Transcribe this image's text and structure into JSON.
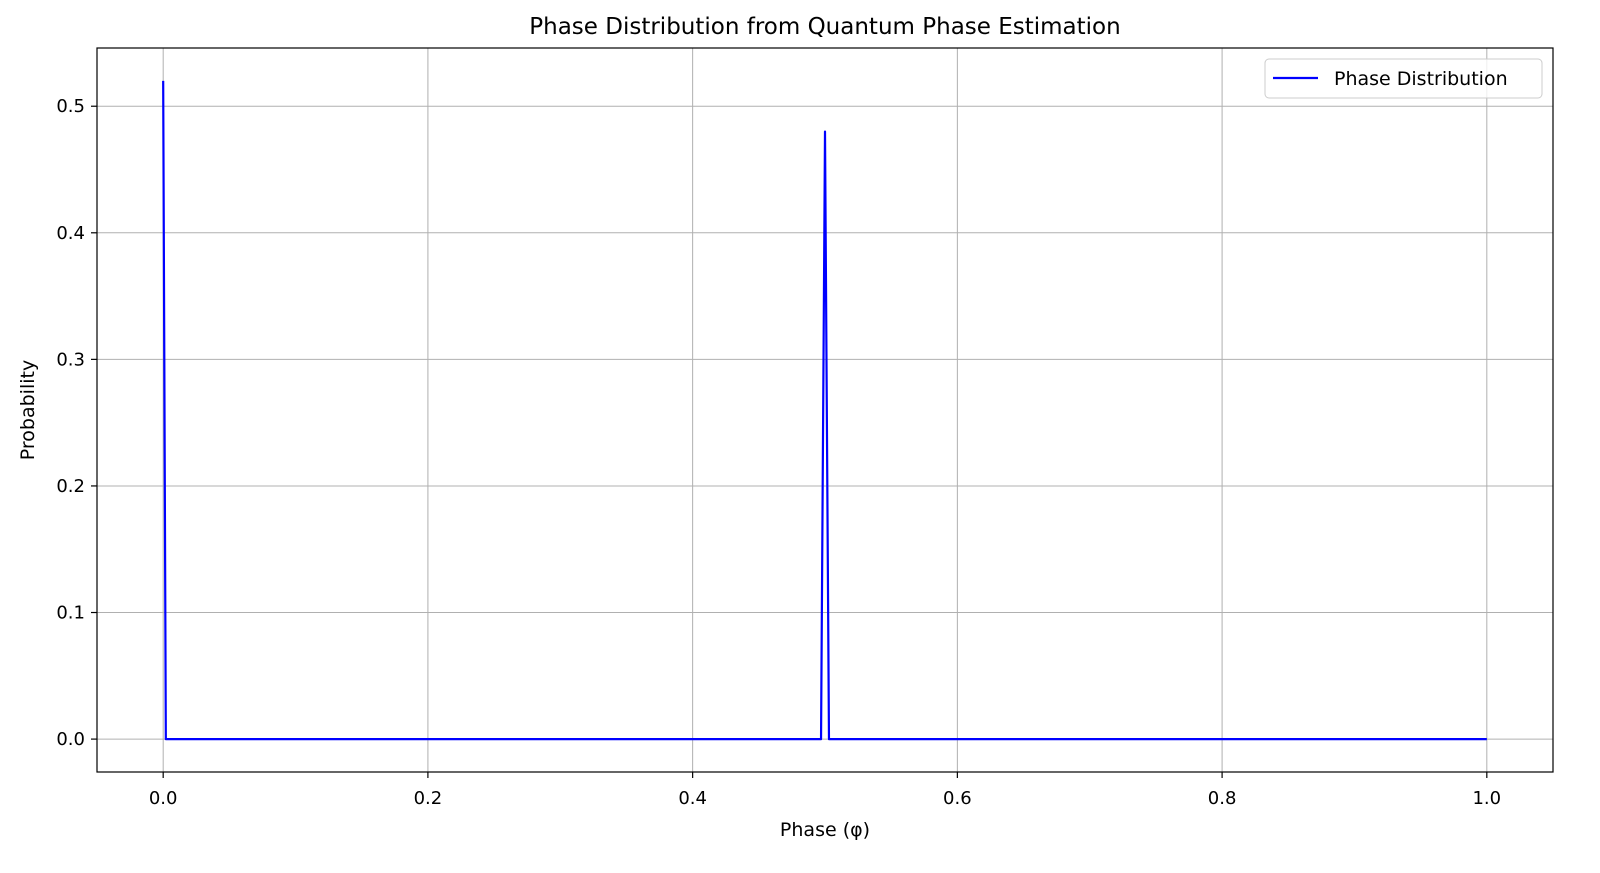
{
  "chart_data": {
    "type": "line",
    "title": "Phase Distribution from Quantum Phase Estimation",
    "xlabel": "Phase (φ)",
    "ylabel": "Probability",
    "xlim": [
      -0.05,
      1.05
    ],
    "ylim": [
      -0.026,
      0.546
    ],
    "xticks": [
      0.0,
      0.2,
      0.4,
      0.6,
      0.8,
      1.0
    ],
    "xtick_labels": [
      "0.0",
      "0.2",
      "0.4",
      "0.6",
      "0.8",
      "1.0"
    ],
    "yticks": [
      0.0,
      0.1,
      0.2,
      0.3,
      0.4,
      0.5
    ],
    "ytick_labels": [
      "0.0",
      "0.1",
      "0.2",
      "0.3",
      "0.4",
      "0.5"
    ],
    "grid": true,
    "legend": {
      "position": "top-right"
    },
    "series": [
      {
        "name": "Phase Distribution",
        "color": "#0000ff",
        "x": [
          0.0,
          0.002,
          0.497,
          0.5,
          0.503,
          1.0
        ],
        "y": [
          0.52,
          0.0,
          0.0,
          0.48,
          0.0,
          0.0
        ]
      }
    ]
  }
}
